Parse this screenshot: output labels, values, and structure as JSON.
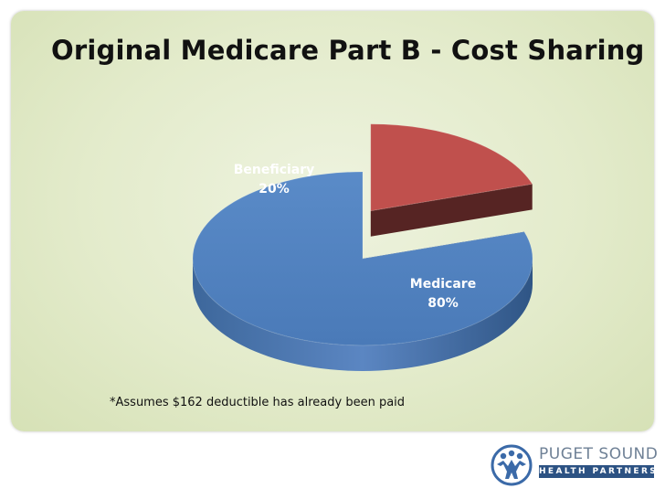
{
  "title": "Original Medicare Part B - Cost Sharing",
  "footnote": "*Assumes $162 deductible has already been paid",
  "logo": {
    "icon": "people-figures-icon",
    "line1": "PUGET SOUND",
    "line2": "HEALTH PARTNERS"
  },
  "chart_data": {
    "type": "pie",
    "style": "3d-exploded",
    "title": "",
    "slices": [
      {
        "label": "Medicare",
        "value": 80,
        "value_label": "80%",
        "color": "#4f81bd"
      },
      {
        "label": "Beneficiary",
        "value": 20,
        "value_label": "20%",
        "color": "#c0504d"
      }
    ],
    "exploded": "Beneficiary",
    "legend": "none"
  }
}
